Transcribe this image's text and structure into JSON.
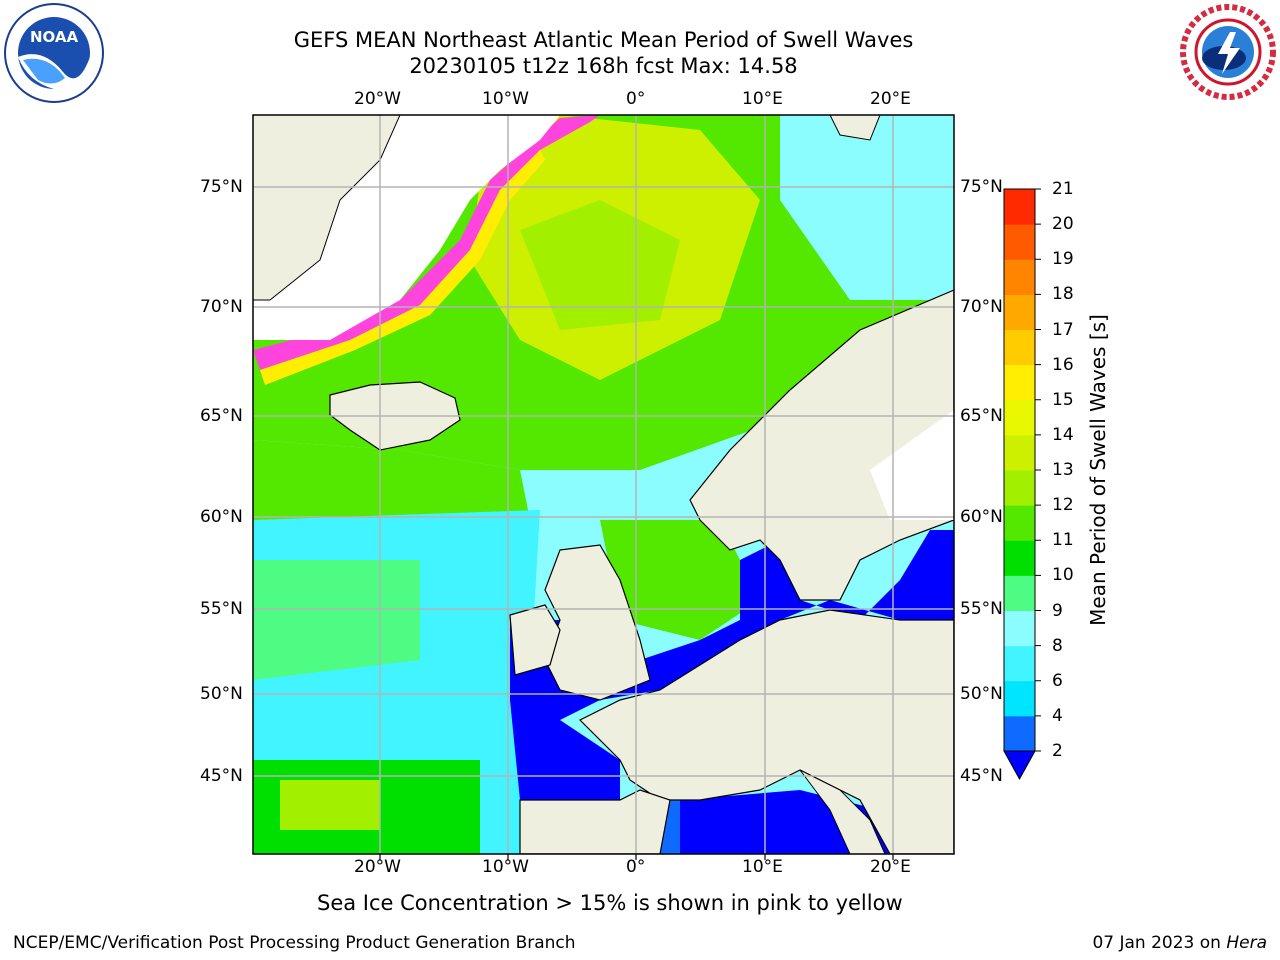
{
  "title_line1": "GEFS MEAN Northeast Atlantic Mean Period of Swell Waves",
  "title_line2": "20230105 t12z 168h fcst   Max: 14.58",
  "longitude_labels": [
    "20°W",
    "10°W",
    "0°",
    "10°E",
    "20°E"
  ],
  "latitude_labels": [
    "75°N",
    "70°N",
    "65°N",
    "60°N",
    "55°N",
    "50°N",
    "45°N"
  ],
  "colorbar": {
    "label": "Mean Period of Swell Waves [s]",
    "ticks": [
      "2",
      "4",
      "6",
      "8",
      "9",
      "10",
      "11",
      "12",
      "13",
      "14",
      "15",
      "16",
      "17",
      "18",
      "19",
      "20",
      "21"
    ],
    "colors": [
      "#0f6bff",
      "#00e5ff",
      "#42f4ff",
      "#8cfdff",
      "#4ffc83",
      "#00e000",
      "#54e800",
      "#a2f000",
      "#ccf000",
      "#e8f800",
      "#ffee00",
      "#ffcc00",
      "#ffa800",
      "#ff8400",
      "#ff5a00",
      "#ff2a00"
    ],
    "extend_below_color": "#0000ff"
  },
  "note": "Sea Ice Concentration > 15% is shown in pink to yellow",
  "footer_left": "NCEP/EMC/Verification Post Processing Product Generation Branch",
  "footer_date": "07 Jan 2023 on ",
  "footer_machine": "Hera",
  "logos": {
    "noaa_text": "NOAA",
    "nws_text": "NATIONAL WEATHER SERVICE"
  },
  "colors": {
    "land": "#efefe0",
    "grid": "#b4b4b4",
    "ice_pink": "#ff44dd"
  }
}
